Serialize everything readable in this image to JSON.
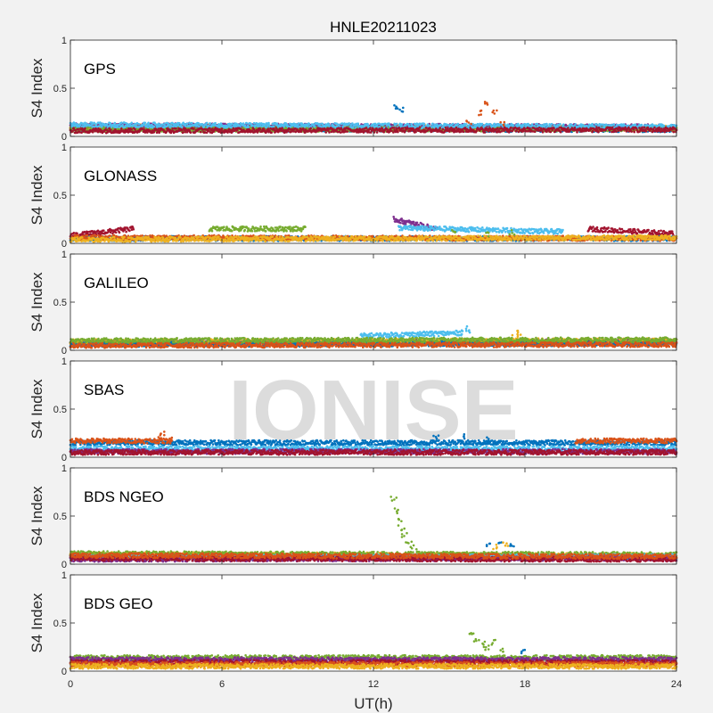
{
  "chart_data": {
    "type": "scatter",
    "title": "HNLE20211023",
    "xlabel": "UT(h)",
    "ylabel": "S4 Index",
    "xlim": [
      0,
      24
    ],
    "ylim": [
      0,
      1
    ],
    "xticks": [
      0,
      6,
      12,
      18,
      24
    ],
    "yticks": [
      0,
      0.5,
      1
    ],
    "watermark": "IONISE",
    "colors": [
      "#0072BD",
      "#D95319",
      "#EDB120",
      "#7E2F8E",
      "#77AC30",
      "#4DBEEE",
      "#A2142F"
    ],
    "panels": [
      {
        "label": "GPS",
        "bands": [
          {
            "color": "#0072BD",
            "x": [
              0,
              24
            ],
            "y": [
              0.08,
              0.07
            ]
          },
          {
            "color": "#D95319",
            "x": [
              0,
              24
            ],
            "y": [
              0.09,
              0.08
            ]
          },
          {
            "color": "#EDB120",
            "x": [
              0,
              24
            ],
            "y": [
              0.1,
              0.09
            ]
          },
          {
            "color": "#7E2F8E",
            "x": [
              0,
              24
            ],
            "y": [
              0.11,
              0.1
            ]
          },
          {
            "color": "#77AC30",
            "x": [
              0,
              24
            ],
            "y": [
              0.07,
              0.08
            ]
          },
          {
            "color": "#4DBEEE",
            "x": [
              0,
              24
            ],
            "y": [
              0.12,
              0.1
            ]
          },
          {
            "color": "#A2142F",
            "x": [
              0,
              24
            ],
            "y": [
              0.06,
              0.07
            ]
          }
        ],
        "highlights": [
          {
            "color": "#D95319",
            "x": [
              15.8,
              16.2,
              16.5,
              16.8,
              17.1
            ],
            "y": [
              0.14,
              0.25,
              0.33,
              0.24,
              0.12
            ]
          },
          {
            "color": "#0072BD",
            "x": [
              12.9,
              13.1
            ],
            "y": [
              0.3,
              0.28
            ]
          }
        ]
      },
      {
        "label": "GLONASS",
        "bands": [
          {
            "color": "#A2142F",
            "x": [
              0,
              2.5
            ],
            "y": [
              0.08,
              0.15
            ]
          },
          {
            "color": "#77AC30",
            "x": [
              5.5,
              9.3
            ],
            "y": [
              0.15,
              0.15
            ]
          },
          {
            "color": "#7E2F8E",
            "x": [
              12.8,
              14.5
            ],
            "y": [
              0.25,
              0.15
            ]
          },
          {
            "color": "#4DBEEE",
            "x": [
              13,
              19.5
            ],
            "y": [
              0.16,
              0.12
            ]
          },
          {
            "color": "#A2142F",
            "x": [
              20.5,
              23.9
            ],
            "y": [
              0.15,
              0.1
            ]
          },
          {
            "color": "#0072BD",
            "x": [
              0,
              24
            ],
            "y": [
              0.05,
              0.05
            ]
          },
          {
            "color": "#D95319",
            "x": [
              0,
              24
            ],
            "y": [
              0.06,
              0.05
            ]
          },
          {
            "color": "#EDB120",
            "x": [
              0,
              24
            ],
            "y": [
              0.04,
              0.06
            ]
          }
        ],
        "highlights": [
          {
            "color": "#77AC30",
            "x": [
              15.2,
              16.5,
              17.5
            ],
            "y": [
              0.13,
              0.1,
              0.12
            ]
          }
        ]
      },
      {
        "label": "GALILEO",
        "bands": [
          {
            "color": "#A2142F",
            "x": [
              0,
              24
            ],
            "y": [
              0.07,
              0.08
            ]
          },
          {
            "color": "#4DBEEE",
            "x": [
              11.5,
              15.5
            ],
            "y": [
              0.15,
              0.18
            ]
          },
          {
            "color": "#7E2F8E",
            "x": [
              0,
              24
            ],
            "y": [
              0.08,
              0.09
            ]
          },
          {
            "color": "#EDB120",
            "x": [
              0,
              24
            ],
            "y": [
              0.09,
              0.1
            ]
          },
          {
            "color": "#0072BD",
            "x": [
              0,
              24
            ],
            "y": [
              0.06,
              0.07
            ]
          },
          {
            "color": "#77AC30",
            "x": [
              0,
              24
            ],
            "y": [
              0.1,
              0.11
            ]
          },
          {
            "color": "#D95319",
            "x": [
              0,
              24
            ],
            "y": [
              0.05,
              0.06
            ]
          }
        ],
        "highlights": [
          {
            "color": "#4DBEEE",
            "x": [
              15.6,
              15.8
            ],
            "y": [
              0.22,
              0.2
            ]
          },
          {
            "color": "#EDB120",
            "x": [
              17.6,
              17.8
            ],
            "y": [
              0.18,
              0.16
            ]
          }
        ]
      },
      {
        "label": "SBAS",
        "bands": [
          {
            "color": "#0072BD",
            "x": [
              0,
              24
            ],
            "y": [
              0.15,
              0.15
            ]
          },
          {
            "color": "#D95319",
            "x": [
              0,
              4
            ],
            "y": [
              0.17,
              0.17
            ]
          },
          {
            "color": "#D95319",
            "x": [
              20,
              24
            ],
            "y": [
              0.17,
              0.17
            ]
          },
          {
            "color": "#4DBEEE",
            "x": [
              0,
              24
            ],
            "y": [
              0.09,
              0.09
            ]
          },
          {
            "color": "#7E2F8E",
            "x": [
              0,
              24
            ],
            "y": [
              0.06,
              0.06
            ]
          },
          {
            "color": "#A2142F",
            "x": [
              0,
              24
            ],
            "y": [
              0.05,
              0.05
            ]
          }
        ],
        "highlights": [
          {
            "color": "#D95319",
            "x": [
              3.5,
              3.7,
              3.9
            ],
            "y": [
              0.22,
              0.25,
              0.2
            ]
          },
          {
            "color": "#0072BD",
            "x": [
              14.5,
              15.5,
              16.5
            ],
            "y": [
              0.2,
              0.22,
              0.2
            ]
          }
        ]
      },
      {
        "label": "BDS NGEO",
        "bands": [
          {
            "color": "#0072BD",
            "x": [
              0,
              24
            ],
            "y": [
              0.08,
              0.07
            ]
          },
          {
            "color": "#EDB120",
            "x": [
              0,
              24
            ],
            "y": [
              0.1,
              0.09
            ]
          },
          {
            "color": "#77AC30",
            "x": [
              0,
              24
            ],
            "y": [
              0.11,
              0.1
            ]
          },
          {
            "color": "#4DBEEE",
            "x": [
              0,
              24
            ],
            "y": [
              0.07,
              0.08
            ]
          },
          {
            "color": "#7E2F8E",
            "x": [
              0,
              24
            ],
            "y": [
              0.05,
              0.06
            ]
          },
          {
            "color": "#A2142F",
            "x": [
              0,
              24
            ],
            "y": [
              0.06,
              0.05
            ]
          },
          {
            "color": "#D95319",
            "x": [
              0,
              24
            ],
            "y": [
              0.09,
              0.08
            ]
          }
        ],
        "highlights": [
          {
            "color": "#77AC30",
            "x": [
              12.8,
              12.9,
              13.0,
              13.1,
              13.2,
              13.4,
              13.6
            ],
            "y": [
              0.68,
              0.55,
              0.45,
              0.38,
              0.3,
              0.22,
              0.18
            ]
          },
          {
            "color": "#0072BD",
            "x": [
              16.5,
              17.0,
              17.5
            ],
            "y": [
              0.2,
              0.22,
              0.18
            ]
          },
          {
            "color": "#EDB120",
            "x": [
              16.8,
              17.2
            ],
            "y": [
              0.18,
              0.2
            ]
          }
        ]
      },
      {
        "label": "BDS GEO",
        "bands": [
          {
            "color": "#77AC30",
            "x": [
              0,
              24
            ],
            "y": [
              0.14,
              0.14
            ]
          },
          {
            "color": "#7E2F8E",
            "x": [
              0,
              24
            ],
            "y": [
              0.12,
              0.12
            ]
          },
          {
            "color": "#A2142F",
            "x": [
              0,
              24
            ],
            "y": [
              0.09,
              0.09
            ]
          },
          {
            "color": "#D95319",
            "x": [
              0,
              24
            ],
            "y": [
              0.07,
              0.07
            ]
          },
          {
            "color": "#EDB120",
            "x": [
              0,
              24
            ],
            "y": [
              0.05,
              0.05
            ]
          }
        ],
        "highlights": [
          {
            "color": "#77AC30",
            "x": [
              15.9,
              16.1,
              16.3,
              16.5,
              16.8,
              17.1
            ],
            "y": [
              0.38,
              0.33,
              0.28,
              0.25,
              0.3,
              0.22
            ]
          },
          {
            "color": "#0072BD",
            "x": [
              17.9
            ],
            "y": [
              0.2
            ]
          }
        ]
      }
    ]
  }
}
